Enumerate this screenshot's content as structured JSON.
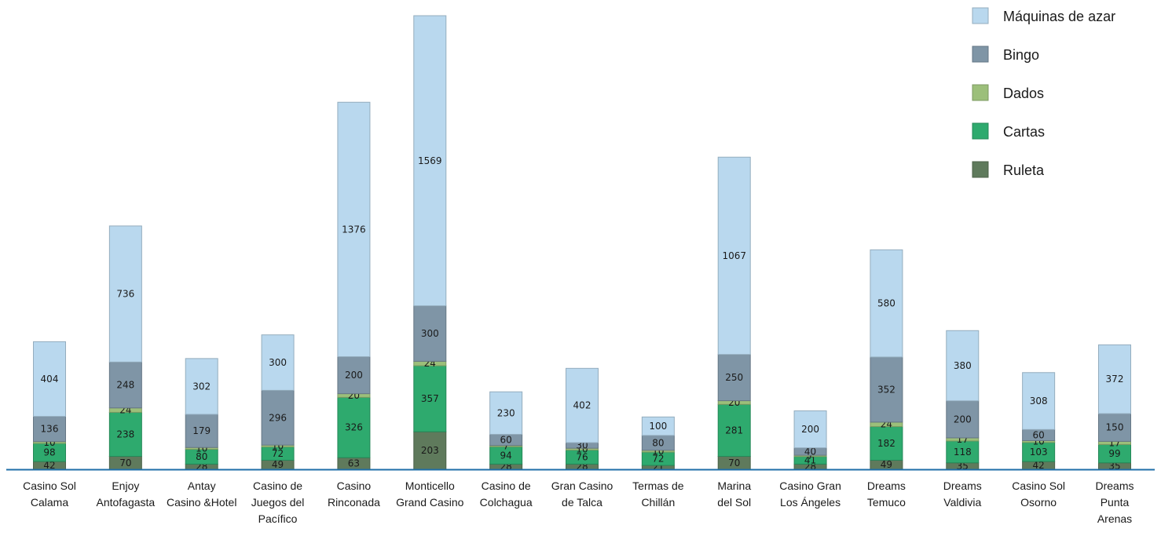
{
  "chart_data": {
    "type": "bar",
    "stacked": true,
    "categories": [
      [
        "Casino Sol",
        "Calama"
      ],
      [
        "Enjoy",
        "Antofagasta"
      ],
      [
        "Antay",
        "Casino &Hotel"
      ],
      [
        "Casino de",
        "Juegos del",
        "Pacífico"
      ],
      [
        "Casino",
        "Rinconada"
      ],
      [
        "Monticello",
        "Grand Casino"
      ],
      [
        "Casino de",
        "Colchagua"
      ],
      [
        "Gran Casino",
        "de Talca"
      ],
      [
        "Termas de",
        "Chillán"
      ],
      [
        "Marina",
        "del Sol"
      ],
      [
        "Casino Gran",
        "Los Ángeles"
      ],
      [
        "Dreams",
        "Temuco"
      ],
      [
        "Dreams",
        "Valdivia"
      ],
      [
        "Casino Sol",
        "Osorno"
      ],
      [
        "Dreams",
        "Punta",
        "Arenas"
      ]
    ],
    "series": [
      {
        "name": "Ruleta",
        "color": "#5f7a5c",
        "values": [
          42,
          70,
          28,
          49,
          63,
          203,
          28,
          28,
          21,
          70,
          28,
          49,
          35,
          42,
          35
        ]
      },
      {
        "name": "Cartas",
        "color": "#2eaa6e",
        "values": [
          98,
          238,
          80,
          72,
          326,
          357,
          94,
          76,
          72,
          281,
          41,
          182,
          118,
          103,
          99
        ]
      },
      {
        "name": "Dados",
        "color": "#9cbf7a",
        "values": [
          10,
          24,
          10,
          10,
          20,
          24,
          7,
          10,
          10,
          20,
          7,
          24,
          17,
          10,
          17
        ]
      },
      {
        "name": "Bingo",
        "color": "#7f95a6",
        "values": [
          136,
          248,
          179,
          296,
          200,
          300,
          60,
          30,
          80,
          250,
          40,
          352,
          200,
          60,
          150
        ]
      },
      {
        "name": "Máquinas de azar",
        "color": "#b9d8ee",
        "values": [
          404,
          736,
          302,
          300,
          1376,
          1569,
          230,
          402,
          100,
          1067,
          200,
          580,
          380,
          308,
          372
        ]
      }
    ],
    "legend": {
      "position": "top-right",
      "order": [
        "Máquinas de azar",
        "Bingo",
        "Dados",
        "Cartas",
        "Ruleta"
      ]
    },
    "axis_color": "#1f6fa8",
    "grid": false,
    "title": "",
    "xlabel": "",
    "ylabel": ""
  }
}
